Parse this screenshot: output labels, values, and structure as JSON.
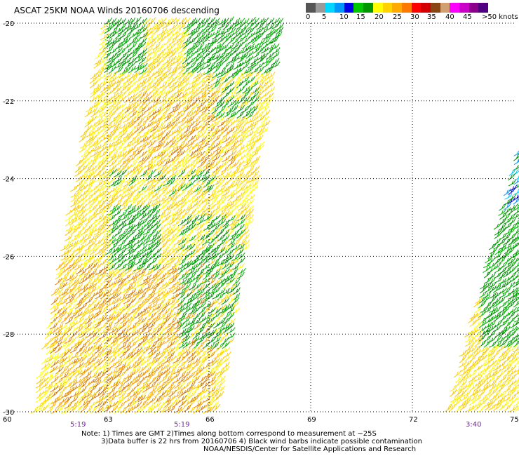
{
  "title": "ASCAT 25KM NOAA Winds 20160706 descending",
  "colorbar": {
    "colors": [
      "#555555",
      "#9a9a9a",
      "#00d7ff",
      "#0096ff",
      "#0000e6",
      "#00c800",
      "#009600",
      "#ffff00",
      "#ffd200",
      "#ffaa00",
      "#ff7800",
      "#ff0000",
      "#d20000",
      "#8b4513",
      "#d2a070",
      "#ff00ff",
      "#c800c8",
      "#8a008a",
      "#500080"
    ],
    "labels": [
      "0",
      "5",
      "10",
      "15",
      "20",
      "25",
      "30",
      "35",
      "40",
      "45",
      ">50 knots"
    ]
  },
  "y_ticks": [
    "-20",
    "-22",
    "-24",
    "-26",
    "-28",
    "-30"
  ],
  "x_ticks": [
    "60",
    "63",
    "66",
    "69",
    "72",
    "75"
  ],
  "time_labels": [
    "5:19",
    "5:19",
    "3:40"
  ],
  "notes": [
    "Note: 1) Times are GMT 2)Times along bottom correspond to measurement at ~25S",
    "3)Data buffer is 22 hrs from 20160706 4) Black wind barbs indicate possible contamination",
    "NOAA/NESDIS/Center for Satellite Applications and Research"
  ]
}
